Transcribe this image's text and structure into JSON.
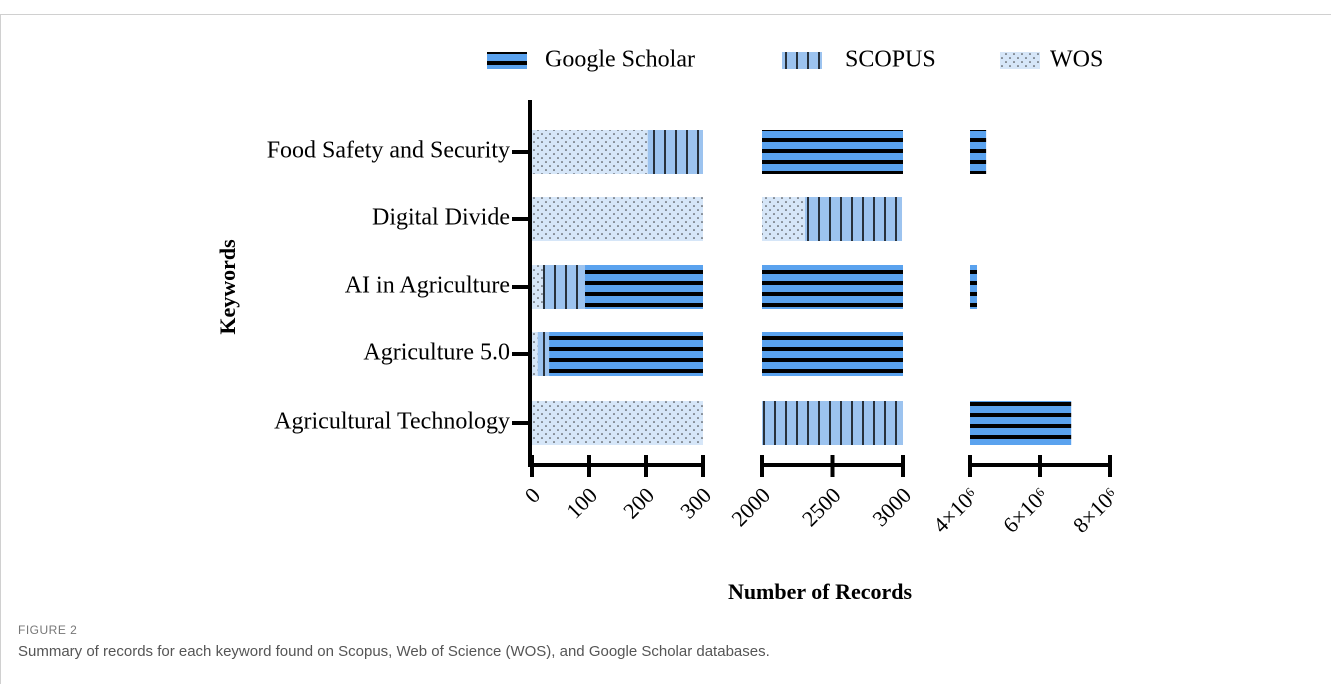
{
  "chart_data": {
    "type": "stacked-hbar-broken",
    "categories": [
      "Food Safety and Security",
      "Digital Divide",
      "AI in Agriculture",
      "Agriculture 5.0",
      "Agricultural Technology"
    ],
    "series": [
      {
        "name": "WOS",
        "color": "#d6e6f8",
        "pattern": "dots",
        "values": [
          203,
          2305,
          19,
          10,
          1500
        ]
      },
      {
        "name": "SCOPUS",
        "color": "#9cc3ef",
        "pattern": "vertical-lines",
        "values": [
          700,
          688,
          74,
          20,
          20000
        ]
      },
      {
        "name": "Google Scholar",
        "color": "#5aa2ee",
        "pattern": "horizontal-lines",
        "values": [
          4460000,
          0,
          4200000,
          50000,
          6870000
        ]
      }
    ],
    "legend_order": [
      2,
      1,
      0
    ],
    "x_segments": [
      {
        "xlim": [
          0,
          300
        ],
        "xticks": [
          0,
          100,
          200,
          300
        ]
      },
      {
        "xlim": [
          2000,
          3000
        ],
        "xticks": [
          2000,
          2500,
          3000
        ]
      },
      {
        "xlim": [
          4000000,
          8000000
        ],
        "xticks": [
          {
            "value": 4000000,
            "label": "4×10⁶"
          },
          {
            "value": 6000000,
            "label": "6×10⁶"
          },
          {
            "value": 8000000,
            "label": "8×10⁶"
          }
        ]
      }
    ],
    "xlabel": "Number of Records",
    "ylabel": "Keywords",
    "figure_label": "FIGURE 2",
    "caption": "Summary of records for each keyword found on Scopus, Web of Science (WOS), and Google Scholar databases."
  }
}
